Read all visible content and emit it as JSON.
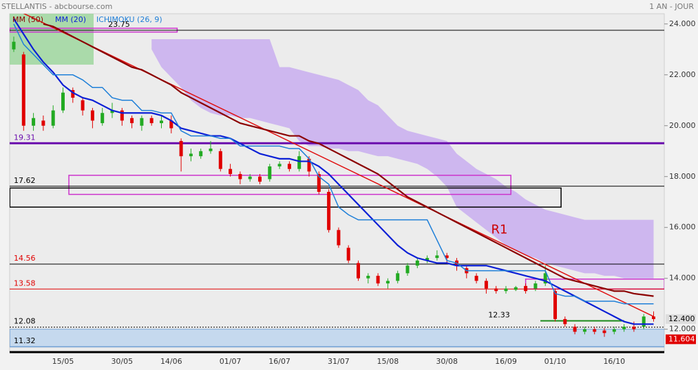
{
  "chart_data": {
    "type": "candlestick",
    "title": "STELLANTIS - abcbourse.com",
    "subtitle": "1 AN - JOUR",
    "categories": [
      null,
      null,
      null,
      null,
      null,
      "15/05",
      null,
      null,
      null,
      null,
      null,
      "30/05",
      null,
      null,
      null,
      null,
      "14/06",
      null,
      null,
      null,
      null,
      null,
      "01/07",
      null,
      null,
      null,
      null,
      "16/07",
      null,
      null,
      null,
      null,
      null,
      "31/07",
      null,
      null,
      null,
      null,
      "15/08",
      null,
      null,
      null,
      null,
      null,
      "30/08",
      null,
      null,
      null,
      null,
      null,
      "16/09",
      null,
      null,
      null,
      null,
      "01/10",
      null,
      null,
      null,
      null,
      null,
      "16/10",
      null,
      null,
      null,
      null
    ],
    "open": [
      23.0,
      22.8,
      20.0,
      20.2,
      20.0,
      20.6,
      21.4,
      21.0,
      20.6,
      20.1,
      20.5,
      20.6,
      20.3,
      20.0,
      20.3,
      20.1,
      20.2,
      19.4,
      18.8,
      18.8,
      19.0,
      19.0,
      18.3,
      18.1,
      17.9,
      18.0,
      17.9,
      18.4,
      18.5,
      18.3,
      18.7,
      18.1,
      17.4,
      15.9,
      15.2,
      14.6,
      14.0,
      14.1,
      13.8,
      13.9,
      14.2,
      14.5,
      14.7,
      14.8,
      14.9,
      14.7,
      14.4,
      14.1,
      13.9,
      13.6,
      13.5,
      13.55,
      13.7,
      13.6,
      13.8,
      13.5,
      12.4,
      12.1,
      11.9,
      12.0,
      11.95,
      11.9,
      12.0,
      12.1,
      12.1,
      12.5
    ],
    "high": [
      23.5,
      22.9,
      20.5,
      20.4,
      20.8,
      21.5,
      21.5,
      21.1,
      20.7,
      20.7,
      20.9,
      20.7,
      20.4,
      20.4,
      20.4,
      20.4,
      20.4,
      19.5,
      19.1,
      19.1,
      19.4,
      19.1,
      18.5,
      18.2,
      18.1,
      18.1,
      18.5,
      18.6,
      18.6,
      19.0,
      18.8,
      18.2,
      17.5,
      16.0,
      15.3,
      14.7,
      14.2,
      14.2,
      14.0,
      14.3,
      14.6,
      14.8,
      14.9,
      15.1,
      15.0,
      14.8,
      14.5,
      14.2,
      14.0,
      13.7,
      13.7,
      13.7,
      13.8,
      13.9,
      14.5,
      13.6,
      12.5,
      12.2,
      12.1,
      12.1,
      12.05,
      12.1,
      12.2,
      12.3,
      12.6,
      12.7
    ],
    "low": [
      22.9,
      19.8,
      19.8,
      19.8,
      19.9,
      20.5,
      20.9,
      20.4,
      19.9,
      20.0,
      20.3,
      20.0,
      19.9,
      19.8,
      20.0,
      19.9,
      19.7,
      18.2,
      18.6,
      18.7,
      18.9,
      18.2,
      18.0,
      17.7,
      17.8,
      17.7,
      17.8,
      18.3,
      18.2,
      18.2,
      18.0,
      17.3,
      15.8,
      15.2,
      14.6,
      13.9,
      13.8,
      13.7,
      13.6,
      13.8,
      14.1,
      14.4,
      14.6,
      14.7,
      14.6,
      14.3,
      14.0,
      13.8,
      13.4,
      13.4,
      13.4,
      13.5,
      13.4,
      13.5,
      13.7,
      12.3,
      12.1,
      11.8,
      11.8,
      11.8,
      11.7,
      11.8,
      11.9,
      11.9,
      12.0,
      12.3
    ],
    "close": [
      23.3,
      20.0,
      20.3,
      20.0,
      20.6,
      21.3,
      21.1,
      20.6,
      20.2,
      20.5,
      20.6,
      20.2,
      20.1,
      20.3,
      20.1,
      20.2,
      19.9,
      18.8,
      18.9,
      19.0,
      19.1,
      18.3,
      18.1,
      17.9,
      18.0,
      17.8,
      18.4,
      18.5,
      18.3,
      18.8,
      18.2,
      17.4,
      15.9,
      15.3,
      14.7,
      14.0,
      14.1,
      13.8,
      13.9,
      14.2,
      14.5,
      14.7,
      14.8,
      14.9,
      14.8,
      14.5,
      14.2,
      13.9,
      13.6,
      13.5,
      13.6,
      13.65,
      13.5,
      13.8,
      14.2,
      12.4,
      12.2,
      11.9,
      12.0,
      11.9,
      11.85,
      12.0,
      12.1,
      12.0,
      12.5,
      12.4
    ],
    "up_color": "#22aa22",
    "down_color": "#e00000",
    "series": [
      {
        "name": "MM (50)",
        "color": "#8b0000",
        "values": [
          null,
          null,
          null,
          24.0,
          23.9,
          23.7,
          23.5,
          23.3,
          23.1,
          22.9,
          22.7,
          22.5,
          22.3,
          22.2,
          22.0,
          21.8,
          21.6,
          21.3,
          21.1,
          20.9,
          20.7,
          20.5,
          20.3,
          20.1,
          20.0,
          19.9,
          19.8,
          19.7,
          19.6,
          19.6,
          19.4,
          19.3,
          19.1,
          18.9,
          18.7,
          18.5,
          18.3,
          18.1,
          17.8,
          17.5,
          17.2,
          17.0,
          16.8,
          16.6,
          16.4,
          16.2,
          16.0,
          15.8,
          15.6,
          15.4,
          15.2,
          15.0,
          14.8,
          14.6,
          14.4,
          14.2,
          14.0,
          13.9,
          13.8,
          13.7,
          13.6,
          13.5,
          13.5,
          13.4,
          13.35,
          13.3
        ]
      },
      {
        "name": "MM (20)",
        "color": "#0a1fd6",
        "values": [
          24.2,
          23.6,
          23.0,
          22.5,
          22.1,
          21.6,
          21.3,
          21.1,
          21.0,
          20.8,
          20.6,
          20.5,
          20.5,
          20.5,
          20.5,
          20.4,
          20.2,
          19.9,
          19.8,
          19.7,
          19.6,
          19.6,
          19.5,
          19.3,
          19.1,
          18.9,
          18.8,
          18.7,
          18.7,
          18.6,
          18.6,
          18.4,
          18.1,
          17.7,
          17.3,
          16.9,
          16.5,
          16.1,
          15.7,
          15.3,
          15.0,
          14.8,
          14.7,
          14.6,
          14.6,
          14.5,
          14.5,
          14.5,
          14.5,
          14.4,
          14.3,
          14.2,
          14.1,
          14.0,
          13.9,
          13.7,
          13.5,
          13.3,
          13.1,
          12.9,
          12.7,
          12.5,
          12.3,
          12.2,
          12.2,
          12.2
        ]
      },
      {
        "name": "ICHIMOKU (26, 9)",
        "color": "#1e7fd8",
        "values": [
          24.0,
          23.2,
          22.8,
          22.4,
          22.0,
          22.0,
          22.0,
          21.8,
          21.5,
          21.5,
          21.1,
          21.0,
          21.0,
          20.6,
          20.6,
          20.5,
          20.5,
          19.8,
          19.6,
          19.6,
          19.6,
          19.5,
          19.5,
          19.2,
          19.2,
          19.2,
          19.2,
          19.2,
          19.1,
          19.1,
          18.7,
          18.0,
          17.7,
          16.8,
          16.5,
          16.3,
          16.3,
          16.3,
          16.3,
          16.3,
          16.3,
          16.3,
          16.3,
          15.5,
          14.7,
          14.6,
          14.3,
          14.3,
          14.3,
          14.3,
          14.3,
          14.3,
          14.3,
          14.3,
          14.3,
          13.4,
          13.3,
          13.3,
          13.1,
          13.1,
          13.1,
          13.1,
          13.0,
          13.0,
          13.0,
          13.0
        ]
      }
    ],
    "cloud": {
      "color": "#c9aef0",
      "upper": [
        null,
        null,
        null,
        null,
        null,
        null,
        null,
        null,
        null,
        null,
        null,
        null,
        null,
        null,
        23.4,
        23.4,
        23.4,
        23.4,
        23.4,
        23.4,
        23.4,
        23.4,
        23.4,
        23.4,
        23.4,
        23.4,
        23.4,
        22.3,
        22.3,
        22.2,
        22.1,
        22.0,
        21.9,
        21.8,
        21.6,
        21.4,
        21.0,
        20.8,
        20.4,
        20.0,
        19.8,
        19.7,
        19.6,
        19.5,
        19.4,
        18.9,
        18.6,
        18.3,
        18.1,
        17.9,
        17.6,
        17.4,
        17.1,
        16.9,
        16.7,
        16.6,
        16.5,
        16.4,
        16.3,
        16.3,
        16.3,
        16.3,
        16.3,
        16.3,
        16.3,
        16.3
      ],
      "lower": [
        null,
        null,
        null,
        null,
        null,
        null,
        null,
        null,
        null,
        null,
        null,
        null,
        null,
        null,
        23.0,
        22.3,
        21.9,
        21.5,
        21.0,
        20.7,
        20.5,
        20.4,
        20.4,
        20.3,
        20.3,
        20.2,
        20.1,
        20.0,
        19.9,
        19.4,
        19.2,
        19.2,
        19.1,
        19.1,
        19.0,
        19.0,
        18.9,
        18.8,
        18.8,
        18.7,
        18.6,
        18.5,
        18.3,
        18.0,
        17.6,
        16.8,
        16.5,
        16.2,
        15.9,
        15.6,
        15.3,
        15.1,
        14.9,
        14.8,
        14.6,
        14.5,
        14.4,
        14.3,
        14.2,
        14.2,
        14.1,
        14.1,
        14.0,
        14.0,
        14.0,
        14.0
      ]
    },
    "trendline": {
      "color": "#e01010",
      "x": [
        0,
        65
      ],
      "y": [
        24.6,
        12.5
      ]
    },
    "zones": [
      {
        "from": 5.6,
        "to": 50.5,
        "low": 17.3,
        "high": 18.05,
        "color": "#cc33cc"
      },
      {
        "from": -0.4,
        "to": 55.6,
        "low": 16.8,
        "high": 17.55,
        "color": "#000000"
      },
      {
        "from": 52,
        "to": 66.1,
        "low": 13.58,
        "high": 13.97,
        "color": "#cc33cc"
      },
      {
        "from": -0.4,
        "to": 16.6,
        "low": 23.68,
        "high": 23.83,
        "color": "#cc33cc"
      },
      {
        "from": -0.4,
        "to": 66.1,
        "low": 11.3,
        "high": 12.0,
        "color": "#7aa6d6"
      }
    ],
    "levels": [
      {
        "value": 23.75,
        "color": "#000000",
        "text_color": "#000000",
        "label_at": 9.6
      },
      {
        "value": 19.31,
        "color": "#6a0dad",
        "text_color": "#6a0dad",
        "width": 3
      },
      {
        "value": 17.62,
        "color": "#000000",
        "text_color": "#000000"
      },
      {
        "value": 14.56,
        "color": "#000000",
        "text_color": "#e00000"
      },
      {
        "value": 13.58,
        "color": "#e00000",
        "text_color": "#e00000"
      },
      {
        "value": 12.33,
        "color": "#1a8a1a",
        "text_color": "#000000",
        "label_at": 48.2,
        "from": 53.5,
        "to": 62,
        "width": 2
      },
      {
        "value": 12.08,
        "color": "#000000",
        "text_color": "#000000",
        "dash": true
      },
      {
        "value": 11.32,
        "color": "#7aa6d6",
        "text_color": "#000000"
      }
    ],
    "price_tags": [
      {
        "value": 12.4,
        "label": "12.400",
        "color": "#dddddd",
        "text_color": "#000000"
      },
      {
        "value": 11.604,
        "label": "11.604",
        "color": "#e00000",
        "text_color": "#ffffff"
      }
    ],
    "annotations": [
      {
        "text": "R1",
        "x": 48.5,
        "y": 15.9,
        "color": "#cc0000"
      }
    ],
    "ylim": [
      11.1,
      24.4
    ],
    "yticks": [
      {
        "value": 12,
        "label": "12.000"
      },
      {
        "value": 14,
        "label": "14.000"
      },
      {
        "value": 16,
        "label": "16.000"
      },
      {
        "value": 18,
        "label": "18.000"
      },
      {
        "value": 20,
        "label": "20.000"
      },
      {
        "value": 22,
        "label": "22.000"
      },
      {
        "value": 24,
        "label": "24.000"
      }
    ]
  }
}
